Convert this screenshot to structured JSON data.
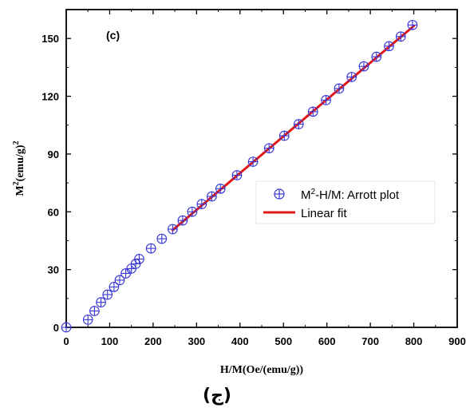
{
  "chart_data": {
    "type": "scatter",
    "panel_label": "(c)",
    "caption": "(ج)",
    "xlabel": "H/M(Oe/(emu/g))",
    "ylabel": {
      "base": "M",
      "sup1": "2",
      "mid": "(emu/g)",
      "sup2": "2"
    },
    "xlim": [
      0,
      900
    ],
    "ylim": [
      0,
      165
    ],
    "xticks": [
      0,
      100,
      200,
      300,
      400,
      500,
      600,
      700,
      800,
      900
    ],
    "yticks": [
      0,
      30,
      60,
      90,
      120,
      150
    ],
    "grid": false,
    "legend_position": "center-right",
    "series": [
      {
        "name": {
          "prefix": "M",
          "sup": "2",
          "suffix": "-H/M: Arrott plot"
        },
        "kind": "scatter",
        "marker": "circle-plus",
        "color": "#3535d8",
        "x": [
          0,
          50,
          65,
          80,
          95,
          110,
          123,
          137,
          150,
          160,
          168,
          195,
          220,
          245,
          268,
          290,
          312,
          335,
          355,
          393,
          430,
          467,
          502,
          535,
          568,
          598,
          628,
          657,
          685,
          714,
          743,
          770,
          797
        ],
        "y": [
          0,
          4,
          8.5,
          13,
          17,
          21,
          24.5,
          28,
          30.5,
          33,
          35.5,
          41,
          46,
          51,
          55.5,
          60,
          64,
          68,
          72,
          79,
          86,
          93,
          99.5,
          105.5,
          112,
          118,
          124,
          130,
          135.5,
          140.5,
          146,
          151,
          157
        ]
      },
      {
        "name": "Linear fit",
        "kind": "line",
        "color": "#e01818",
        "x": [
          245,
          800
        ],
        "y": [
          50.5,
          156.5
        ]
      }
    ]
  }
}
